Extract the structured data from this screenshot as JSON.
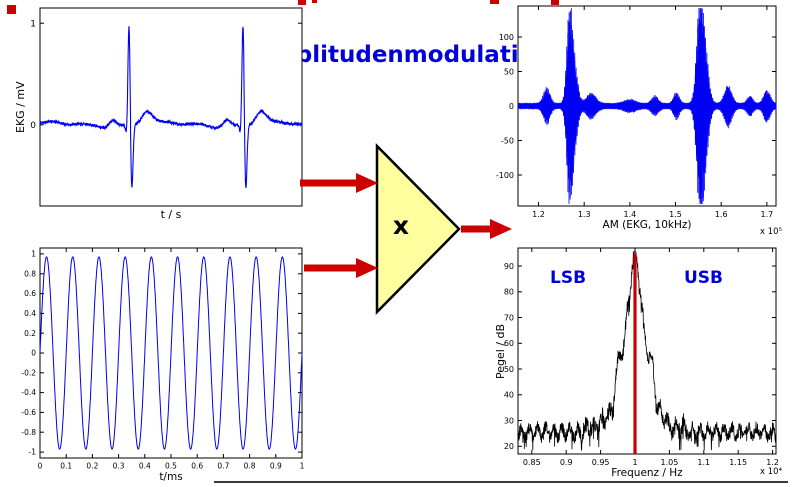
{
  "page": {
    "title": "Amplitudenmodulation"
  },
  "colors": {
    "title_blue": "#0000dd",
    "accent_red": "#cc0000",
    "signal_blue": "#0000f5",
    "spectrum_black": "#000000",
    "triangle_fill": "#ffffa0",
    "triangle_stroke": "#000000",
    "annotation_blue": "#0000dd",
    "divider_gray": "#3a3a3a"
  },
  "multiplier": {
    "label": "x"
  },
  "charts": {
    "ekg": {
      "type": "line",
      "ylabel": "EKG / mV",
      "xlabel": "t / s",
      "line_color": "#0000f5",
      "line_width": 1.1,
      "xlim": [
        0,
        1
      ],
      "ylim": [
        -0.8,
        1.15
      ],
      "ytick_vals": [
        0,
        1
      ],
      "ytick_labels": [
        "0",
        "1"
      ],
      "beat_centers": [
        0.34,
        0.775
      ],
      "beat_components": [
        {
          "o": -0.062,
          "a": 0.07,
          "w": 0.014
        },
        {
          "o": -0.009,
          "a": -0.1,
          "w": 0.004
        },
        {
          "o": 0,
          "a": 1.05,
          "w": 0.0042
        },
        {
          "o": 0.01,
          "a": -0.66,
          "w": 0.0048
        },
        {
          "o": 0.068,
          "a": 0.13,
          "w": 0.02
        }
      ],
      "noise": 0.013
    },
    "carrier": {
      "type": "line",
      "xlabel": "t/ms",
      "line_color": "#0000f5",
      "line_width": 1,
      "xlim": [
        0,
        1
      ],
      "ylim": [
        -1.06,
        1.06
      ],
      "cycles": 10,
      "amplitude": 0.97,
      "xtick_vals": [
        0,
        0.1,
        0.2,
        0.3,
        0.4,
        0.5,
        0.6,
        0.7,
        0.8,
        0.9,
        1
      ],
      "xtick_labels": [
        "0",
        "0.1",
        "0.2",
        "0.3",
        "0.4",
        "0.5",
        "0.6",
        "0.7",
        "0.8",
        "0.9",
        "1"
      ],
      "ytick_vals": [
        1,
        0.8,
        0.6,
        0.4,
        0.2,
        0,
        -0.2,
        -0.4,
        -0.6,
        -0.8,
        -1
      ],
      "ytick_labels": [
        "1",
        "0.8",
        "0.6",
        "0.4",
        "0.2",
        "0",
        "-0.2",
        "-0.4",
        "-0.6",
        "-0.8",
        "-1"
      ]
    },
    "am": {
      "type": "line",
      "xlabel": "AM (EKG, 10kHz)",
      "scale_note": "x 10⁵",
      "line_color": "#0000f5",
      "line_width": 0.8,
      "xlim": [
        1.155,
        1.72
      ],
      "ylim": [
        -145,
        145
      ],
      "xtick_vals": [
        1.2,
        1.3,
        1.4,
        1.5,
        1.6,
        1.7
      ],
      "xtick_labels": [
        "1.2",
        "1.3",
        "1.4",
        "1.5",
        "1.6",
        "1.7"
      ],
      "ytick_vals": [
        -100,
        -50,
        0,
        50,
        100
      ],
      "ytick_labels": [
        "-100",
        "-50",
        "0",
        "50",
        "100"
      ],
      "envelope_base": 5,
      "envelope": [
        {
          "c": 1.218,
          "w": 0.007,
          "a": 24
        },
        {
          "c": 1.268,
          "w": 0.006,
          "a": 138
        },
        {
          "c": 1.279,
          "w": 0.007,
          "a": 52
        },
        {
          "c": 1.315,
          "w": 0.01,
          "a": 16
        },
        {
          "c": 1.4,
          "w": 0.012,
          "a": 6
        },
        {
          "c": 1.455,
          "w": 0.007,
          "a": 11
        },
        {
          "c": 1.502,
          "w": 0.006,
          "a": 17
        },
        {
          "c": 1.553,
          "w": 0.007,
          "a": 138
        },
        {
          "c": 1.564,
          "w": 0.008,
          "a": 78
        },
        {
          "c": 1.615,
          "w": 0.008,
          "a": 28
        },
        {
          "c": 1.663,
          "w": 0.006,
          "a": 12
        },
        {
          "c": 1.7,
          "w": 0.007,
          "a": 21
        }
      ]
    },
    "spectrum": {
      "type": "line",
      "ylabel": "Pegel / dB",
      "xlabel": "Frequenz / Hz",
      "scale_note": "x 10⁴",
      "line_color": "#000000",
      "line_width": 0.8,
      "carrier_line_color": "#cc0000",
      "carrier_freq": 1,
      "carrier_peak_level": 95,
      "xlim": [
        0.83,
        1.205
      ],
      "ylim": [
        17,
        97
      ],
      "xtick_vals": [
        0.85,
        0.9,
        0.95,
        1,
        1.05,
        1.1,
        1.15,
        1.2
      ],
      "xtick_labels": [
        "0.85",
        "0.9",
        "0.95",
        "1",
        "1.05",
        "1.1",
        "1.15",
        "1.2"
      ],
      "ytick_vals": [
        20,
        30,
        40,
        50,
        60,
        70,
        80,
        90
      ],
      "ytick_labels": [
        "20",
        "30",
        "40",
        "50",
        "60",
        "70",
        "80",
        "90"
      ],
      "annotations": {
        "lsb": "LSB",
        "usb": "USB"
      }
    }
  }
}
